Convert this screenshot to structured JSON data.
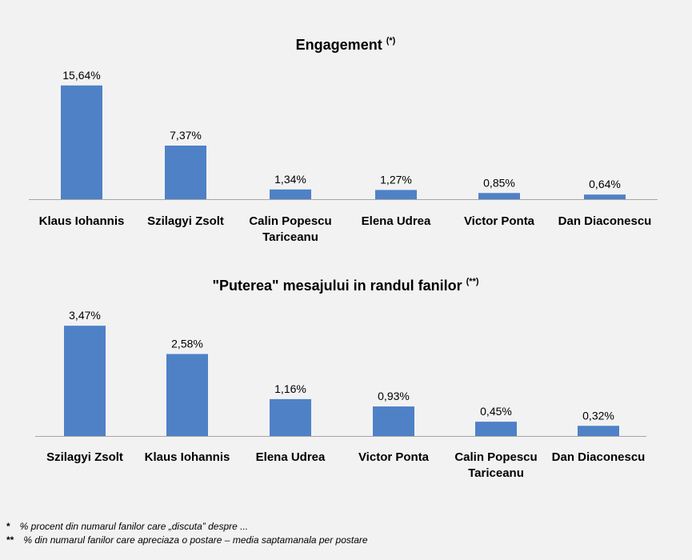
{
  "chart_data": [
    {
      "type": "bar",
      "title": "Engagement",
      "title_marker": "(*)",
      "categories": [
        "Klaus Iohannis",
        "Szilagyi Zsolt",
        "Calin Popescu Tariceanu",
        "Elena Udrea",
        "Victor Ponta",
        "Dan Diaconescu"
      ],
      "values": [
        15.64,
        7.37,
        1.34,
        1.27,
        0.85,
        0.64
      ],
      "data_labels": [
        "15,64%",
        "7,37%",
        "1,34%",
        "1,27%",
        "0,85%",
        "0,64%"
      ],
      "ylim": [
        0,
        16.5
      ],
      "grid": false,
      "bar_color": "#4f81c7"
    },
    {
      "type": "bar",
      "title": "\"Puterea\" mesajului in randul fanilor",
      "title_marker": "(**)",
      "categories": [
        "Szilagyi Zsolt",
        "Klaus Iohannis",
        "Elena Udrea",
        "Victor Ponta",
        "Calin Popescu Tariceanu",
        "Dan Diaconescu"
      ],
      "values": [
        3.47,
        2.58,
        1.16,
        0.93,
        0.45,
        0.32
      ],
      "data_labels": [
        "3,47%",
        "2,58%",
        "1,16%",
        "0,93%",
        "0,45%",
        "0,32%"
      ],
      "ylim": [
        0,
        3.65
      ],
      "grid": false,
      "bar_color": "#4f81c7"
    }
  ],
  "footnotes": [
    {
      "mark": "*",
      "text": "% procent din numarul fanilor care  „discuta” despre  ..."
    },
    {
      "mark": "**",
      "text": "% din numarul fanilor  care apreciaza o postare – media saptamanala  per postare"
    }
  ]
}
